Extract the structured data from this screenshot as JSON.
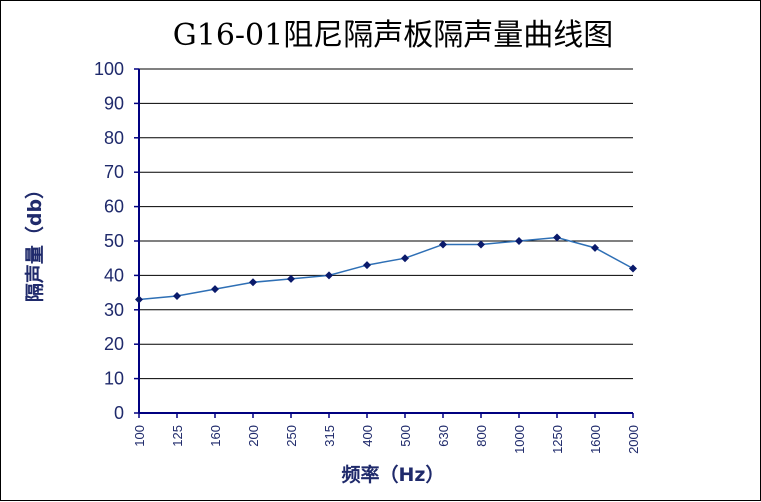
{
  "chart_data": {
    "type": "line",
    "title": "G16-01阻尼隔声板隔声量曲线图",
    "xlabel": "频率（Hz）",
    "ylabel": "隔声量（db）",
    "categories": [
      "100",
      "125",
      "160",
      "200",
      "250",
      "315",
      "400",
      "500",
      "630",
      "800",
      "1000",
      "1250",
      "1600",
      "2000"
    ],
    "series": [
      {
        "values": [
          33,
          34,
          36,
          38,
          39,
          40,
          43,
          45,
          49,
          49,
          50,
          51,
          48,
          42
        ]
      }
    ],
    "ylim": [
      0,
      100
    ],
    "yticks": [
      0,
      10,
      20,
      30,
      40,
      50,
      60,
      70,
      80,
      90,
      100
    ],
    "grid": true,
    "colors": {
      "line": "#2e6fb5",
      "marker": "#0a1a6b",
      "grid": "#000000",
      "axis": "#000080",
      "text": "#1f2a6b"
    }
  }
}
